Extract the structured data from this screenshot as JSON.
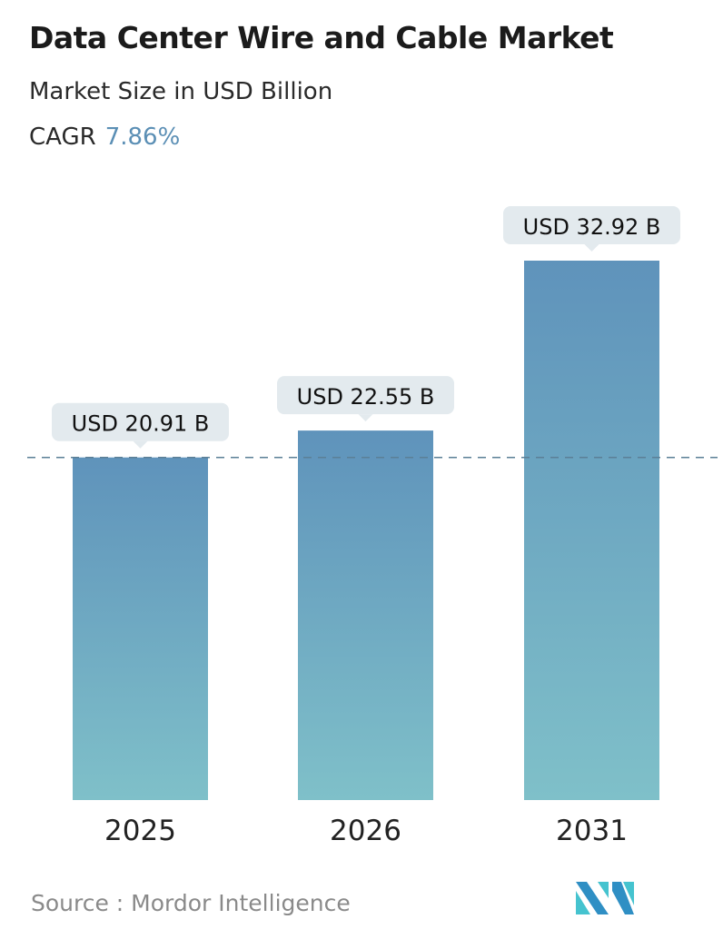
{
  "title": "Data Center Wire and Cable Market",
  "subtitle": "Market Size in USD Billion",
  "cagr_label": "CAGR",
  "cagr_value": "7.86%",
  "source": "Source :  Mordor Intelligence",
  "chart_data": {
    "type": "bar",
    "categories": [
      "2025",
      "2026",
      "2031"
    ],
    "values": [
      20.91,
      22.55,
      32.92
    ],
    "data_labels": [
      "USD 20.91 B",
      "USD 22.55 B",
      "USD 32.92 B"
    ],
    "ylim": [
      0,
      32.92
    ],
    "reference_line": 20.91,
    "grid": false,
    "colors": {
      "bar_top": "#5f93bb",
      "bar_bottom": "#7fc0c9",
      "label_bg": "#e3eaee",
      "reference_line": "#5b7f96",
      "cagr": "#5b8fb5"
    }
  }
}
